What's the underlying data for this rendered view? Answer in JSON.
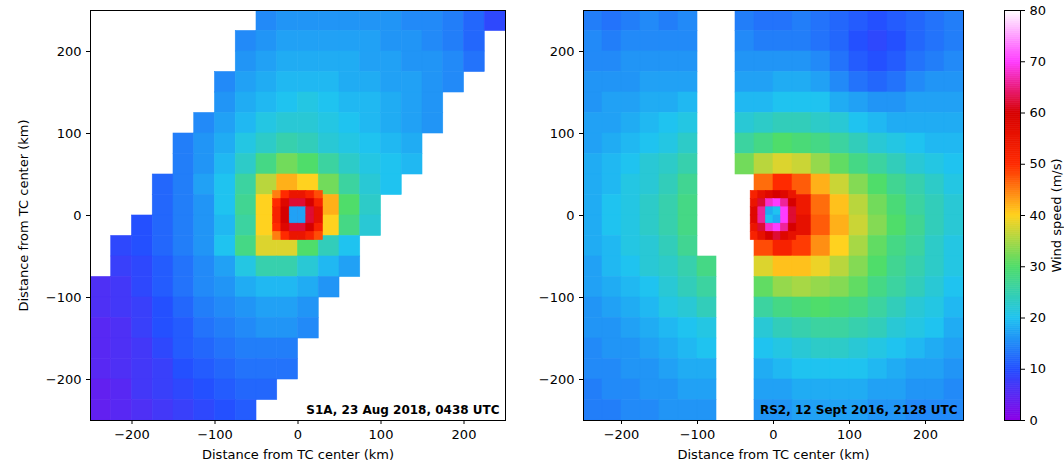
{
  "chart_data": [
    {
      "type": "heatmap",
      "xlabel": "Distance from TC center (km)",
      "ylabel": "Distance from TC center (km)",
      "xlim": [
        -250,
        250
      ],
      "ylim": [
        -250,
        250
      ],
      "xticks": [
        -200,
        -100,
        0,
        100,
        200
      ],
      "yticks": [
        -200,
        -100,
        0,
        100,
        200
      ],
      "annotation": "S1A, 23 Aug 2018, 0438 UTC",
      "cells": {
        "x_edges": [
          -250,
          -225,
          -200,
          -175,
          -150,
          -125,
          -100,
          -75,
          -50,
          -25,
          0,
          25,
          50,
          75,
          100,
          125,
          150,
          175,
          200,
          225,
          250
        ],
        "y_edges": [
          250,
          225,
          200,
          175,
          150,
          125,
          100,
          75,
          50,
          25,
          0,
          -25,
          -50,
          -75,
          -100,
          -125,
          -150,
          -175,
          -200,
          -225,
          -250
        ],
        "values": [
          [
            null,
            null,
            null,
            null,
            null,
            null,
            null,
            null,
            15,
            16,
            16,
            16,
            16,
            16,
            16,
            15,
            15,
            14,
            12,
            9
          ],
          [
            null,
            null,
            null,
            null,
            null,
            null,
            null,
            15,
            16,
            17,
            17,
            17,
            17,
            17,
            16,
            16,
            15,
            14,
            12,
            null
          ],
          [
            null,
            null,
            null,
            null,
            null,
            null,
            null,
            16,
            17,
            18,
            18,
            18,
            18,
            17,
            17,
            16,
            16,
            15,
            13,
            null
          ],
          [
            null,
            null,
            null,
            null,
            null,
            null,
            15,
            17,
            18,
            19,
            19,
            19,
            18,
            18,
            17,
            17,
            16,
            15,
            null,
            null
          ],
          [
            null,
            null,
            null,
            null,
            null,
            null,
            16,
            18,
            19,
            20,
            21,
            20,
            19,
            19,
            18,
            17,
            16,
            null,
            null,
            null
          ],
          [
            null,
            null,
            null,
            null,
            null,
            15,
            17,
            19,
            21,
            22,
            22,
            21,
            20,
            19,
            18,
            17,
            16,
            null,
            null,
            null
          ],
          [
            null,
            null,
            null,
            null,
            14,
            16,
            18,
            21,
            23,
            25,
            24,
            22,
            21,
            20,
            19,
            18,
            null,
            null,
            null,
            null
          ],
          [
            null,
            null,
            null,
            null,
            14,
            16,
            19,
            23,
            28,
            32,
            30,
            26,
            23,
            21,
            20,
            19,
            null,
            null,
            null,
            null
          ],
          [
            null,
            null,
            null,
            12,
            14,
            17,
            20,
            26,
            36,
            42,
            40,
            32,
            26,
            22,
            20,
            null,
            null,
            null,
            null,
            null
          ],
          [
            null,
            null,
            null,
            12,
            14,
            16,
            20,
            27,
            40,
            54,
            56,
            42,
            30,
            23,
            null,
            null,
            null,
            null,
            null,
            null
          ],
          [
            null,
            null,
            10,
            12,
            14,
            16,
            19,
            26,
            40,
            55,
            55,
            40,
            28,
            22,
            null,
            null,
            null,
            null,
            null,
            null
          ],
          [
            null,
            9,
            10,
            12,
            14,
            16,
            20,
            28,
            38,
            38,
            30,
            24,
            20,
            null,
            null,
            null,
            null,
            null,
            null,
            null
          ],
          [
            null,
            8,
            9,
            11,
            13,
            15,
            17,
            21,
            25,
            25,
            22,
            19,
            17,
            null,
            null,
            null,
            null,
            null,
            null,
            null
          ],
          [
            6,
            7,
            9,
            11,
            13,
            15,
            16,
            18,
            19,
            19,
            18,
            16,
            null,
            null,
            null,
            null,
            null,
            null,
            null,
            null
          ],
          [
            6,
            7,
            8,
            10,
            12,
            14,
            15,
            16,
            17,
            17,
            16,
            null,
            null,
            null,
            null,
            null,
            null,
            null,
            null,
            null
          ],
          [
            5,
            6,
            8,
            10,
            11,
            13,
            14,
            15,
            16,
            16,
            15,
            null,
            null,
            null,
            null,
            null,
            null,
            null,
            null,
            null
          ],
          [
            5,
            6,
            7,
            9,
            11,
            12,
            13,
            14,
            14,
            14,
            null,
            null,
            null,
            null,
            null,
            null,
            null,
            null,
            null,
            null
          ],
          [
            5,
            6,
            7,
            8,
            10,
            11,
            12,
            13,
            13,
            13,
            null,
            null,
            null,
            null,
            null,
            null,
            null,
            null,
            null,
            null
          ],
          [
            4,
            5,
            7,
            8,
            9,
            10,
            11,
            12,
            12,
            null,
            null,
            null,
            null,
            null,
            null,
            null,
            null,
            null,
            null,
            null
          ],
          [
            4,
            5,
            6,
            7,
            8,
            9,
            10,
            11,
            null,
            null,
            null,
            null,
            null,
            null,
            null,
            null,
            null,
            null,
            null,
            null
          ]
        ]
      },
      "core_cells": {
        "x_edges": [
          -30,
          -20,
          -10,
          0,
          10,
          20,
          30
        ],
        "y_edges": [
          30,
          20,
          10,
          0,
          -10,
          -20,
          -30
        ],
        "values": [
          [
            45,
            50,
            55,
            55,
            52,
            48
          ],
          [
            50,
            58,
            62,
            62,
            60,
            52
          ],
          [
            52,
            60,
            17,
            17,
            62,
            56
          ],
          [
            52,
            60,
            17,
            17,
            62,
            56
          ],
          [
            50,
            58,
            62,
            62,
            60,
            52
          ],
          [
            45,
            50,
            55,
            55,
            52,
            48
          ]
        ]
      }
    },
    {
      "type": "heatmap",
      "xlabel": "Distance from TC center (km)",
      "xlim": [
        -250,
        250
      ],
      "ylim": [
        -250,
        250
      ],
      "xticks": [
        -200,
        -100,
        0,
        100,
        200
      ],
      "yticks": [
        -200,
        -100,
        0,
        100,
        200
      ],
      "annotation": "RS2, 12 Sept 2016, 2128 UTC",
      "cells": {
        "x_edges": [
          -250,
          -225,
          -200,
          -175,
          -150,
          -125,
          -100,
          -75,
          -50,
          -25,
          0,
          25,
          50,
          75,
          100,
          125,
          150,
          175,
          200,
          225,
          250
        ],
        "y_edges": [
          250,
          225,
          200,
          175,
          150,
          125,
          100,
          75,
          50,
          25,
          0,
          -25,
          -50,
          -75,
          -100,
          -125,
          -150,
          -175,
          -200,
          -225,
          -250
        ],
        "values": [
          [
            14,
            13,
            14,
            15,
            14,
            15,
            null,
            null,
            14,
            13,
            13,
            14,
            13,
            12,
            11,
            10,
            11,
            12,
            13,
            14
          ],
          [
            15,
            14,
            15,
            15,
            15,
            15,
            null,
            null,
            15,
            14,
            14,
            14,
            13,
            12,
            10,
            9,
            10,
            12,
            13,
            14
          ],
          [
            15,
            15,
            16,
            16,
            16,
            16,
            null,
            null,
            16,
            16,
            16,
            16,
            15,
            13,
            11,
            10,
            11,
            13,
            14,
            15
          ],
          [
            16,
            16,
            16,
            17,
            17,
            17,
            null,
            null,
            17,
            17,
            18,
            18,
            17,
            15,
            13,
            12,
            13,
            15,
            16,
            16
          ],
          [
            16,
            17,
            17,
            18,
            18,
            19,
            null,
            null,
            19,
            19,
            20,
            20,
            20,
            18,
            17,
            16,
            16,
            17,
            17,
            17
          ],
          [
            17,
            17,
            18,
            19,
            20,
            21,
            null,
            null,
            22,
            23,
            24,
            24,
            23,
            22,
            20,
            19,
            18,
            18,
            18,
            18
          ],
          [
            17,
            18,
            19,
            20,
            21,
            23,
            null,
            null,
            26,
            28,
            30,
            29,
            28,
            26,
            24,
            22,
            21,
            20,
            19,
            19
          ],
          [
            18,
            19,
            20,
            22,
            23,
            25,
            null,
            null,
            32,
            36,
            38,
            37,
            34,
            31,
            28,
            26,
            24,
            22,
            21,
            20
          ],
          [
            18,
            19,
            21,
            22,
            24,
            27,
            null,
            null,
            null,
            46,
            50,
            47,
            42,
            37,
            33,
            30,
            27,
            25,
            23,
            21
          ],
          [
            18,
            20,
            21,
            23,
            25,
            28,
            null,
            null,
            null,
            60,
            62,
            54,
            46,
            41,
            36,
            32,
            29,
            26,
            24,
            22
          ],
          [
            18,
            20,
            21,
            23,
            25,
            28,
            null,
            null,
            null,
            60,
            62,
            56,
            47,
            42,
            37,
            33,
            30,
            27,
            24,
            22
          ],
          [
            18,
            19,
            21,
            22,
            24,
            27,
            null,
            null,
            null,
            48,
            52,
            49,
            44,
            40,
            35,
            31,
            28,
            26,
            23,
            21
          ],
          [
            17,
            19,
            20,
            22,
            23,
            25,
            28,
            null,
            null,
            38,
            41,
            41,
            39,
            36,
            33,
            30,
            27,
            25,
            23,
            21
          ],
          [
            17,
            18,
            19,
            20,
            22,
            24,
            26,
            null,
            null,
            31,
            34,
            35,
            34,
            33,
            31,
            28,
            26,
            24,
            22,
            20
          ],
          [
            16,
            17,
            18,
            19,
            21,
            22,
            24,
            null,
            null,
            26,
            28,
            29,
            30,
            29,
            28,
            26,
            24,
            22,
            21,
            19
          ],
          [
            16,
            16,
            17,
            18,
            19,
            20,
            21,
            null,
            null,
            22,
            24,
            25,
            26,
            26,
            25,
            24,
            22,
            21,
            20,
            18
          ],
          [
            15,
            16,
            16,
            17,
            18,
            19,
            20,
            null,
            null,
            20,
            21,
            22,
            23,
            23,
            22,
            21,
            20,
            19,
            18,
            17
          ],
          [
            15,
            15,
            16,
            16,
            17,
            18,
            18,
            null,
            null,
            18,
            19,
            20,
            20,
            20,
            20,
            19,
            18,
            17,
            17,
            16
          ],
          [
            14,
            15,
            15,
            16,
            16,
            17,
            17,
            null,
            null,
            17,
            17,
            18,
            18,
            18,
            18,
            17,
            17,
            16,
            16,
            15
          ],
          [
            14,
            14,
            15,
            15,
            16,
            16,
            16,
            null,
            null,
            16,
            16,
            17,
            17,
            17,
            17,
            16,
            16,
            15,
            15,
            15
          ]
        ]
      },
      "core_cells": {
        "x_edges": [
          -30,
          -20,
          -10,
          0,
          10,
          20,
          30
        ],
        "y_edges": [
          30,
          20,
          10,
          0,
          -10,
          -20,
          -30
        ],
        "values": [
          [
            52,
            56,
            58,
            60,
            58,
            55
          ],
          [
            55,
            62,
            68,
            70,
            66,
            60
          ],
          [
            58,
            66,
            18,
            20,
            70,
            62
          ],
          [
            58,
            66,
            20,
            18,
            70,
            62
          ],
          [
            55,
            62,
            68,
            70,
            66,
            60
          ],
          [
            52,
            56,
            60,
            62,
            58,
            56
          ]
        ]
      },
      "colorbar": {
        "label": "Wind speed (m/s)",
        "range": [
          0,
          80
        ],
        "ticks": [
          0,
          10,
          20,
          30,
          40,
          50,
          60,
          70,
          80
        ],
        "stops": [
          0,
          10,
          20,
          30,
          40,
          50,
          60,
          70,
          80
        ],
        "colors": [
          "#8c00e6",
          "#2450ff",
          "#1fc3f0",
          "#4fdd6a",
          "#ffd21f",
          "#ff2a00",
          "#d60000",
          "#ff3cff",
          "#ffffff"
        ]
      }
    }
  ]
}
